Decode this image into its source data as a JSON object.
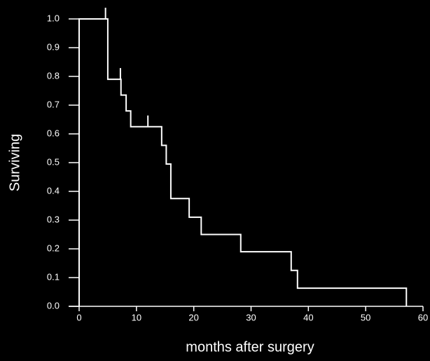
{
  "chart_data": {
    "type": "step",
    "x_label": "months after surgery",
    "y_label": "Surviving",
    "x": [
      0,
      5.0,
      7.3,
      8.2,
      9.0,
      14.4,
      15.2,
      16.0,
      19.2,
      21.3,
      28.2,
      37.0,
      38.1,
      57.1
    ],
    "values": [
      1.0,
      0.79,
      0.735,
      0.68,
      0.625,
      0.56,
      0.495,
      0.375,
      0.31,
      0.25,
      0.19,
      0.125,
      0.063,
      0.0
    ],
    "censored": {
      "x": [
        4.6,
        7.2,
        12.0
      ],
      "values": [
        1.0,
        0.79,
        0.625
      ]
    },
    "color": "#ffffff",
    "xlim": [
      0,
      60
    ],
    "xticks": [
      0,
      10,
      20,
      30,
      40,
      50,
      60
    ],
    "ylim": [
      0,
      1.0
    ],
    "yticks": [
      {
        "value": 0,
        "label": "0.0"
      },
      0.1,
      0.2,
      0.3,
      0.4,
      0.5,
      0.6,
      0.7,
      0.8,
      0.9,
      {
        "value": 1.0,
        "label": "1.0"
      }
    ]
  }
}
